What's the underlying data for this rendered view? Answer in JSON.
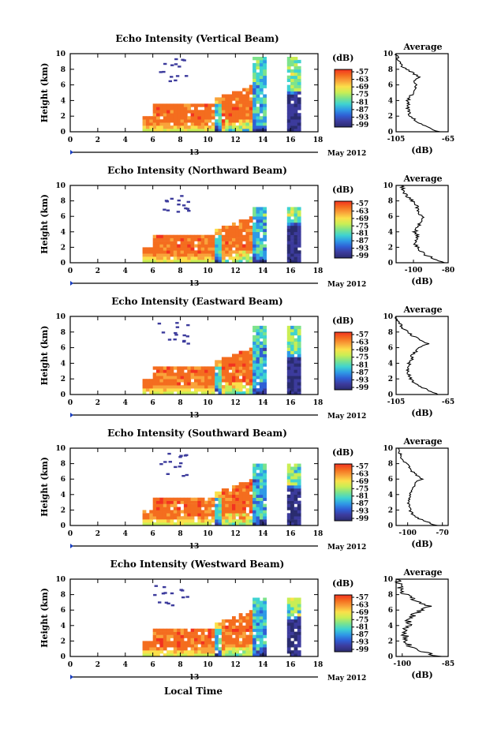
{
  "figure": {
    "xlabel": "Local Time",
    "date_label": "13",
    "month_label": "May 2012",
    "colorbar_unit": "(dB)",
    "colorbar_ticks": [
      "-57",
      "-63",
      "-69",
      "-75",
      "-81",
      "-87",
      "-93",
      "-99"
    ],
    "colormap": [
      "#f23320",
      "#f46d1f",
      "#f9a33a",
      "#fbe04a",
      "#c9ee55",
      "#7de38c",
      "#3fd3d0",
      "#2f9ae6",
      "#2f5fd5",
      "#3c3b9c",
      "#2a2c6f"
    ]
  },
  "chart_data": [
    {
      "type": "heatmap",
      "title": "Echo Intensity (Vertical Beam)",
      "ylabel": "Height (km)",
      "xlim": [
        0,
        18
      ],
      "ylim": [
        0,
        10
      ],
      "xticks": [
        "0",
        "2",
        "4",
        "6",
        "8",
        "10",
        "12",
        "14",
        "16",
        "18"
      ],
      "yticks": [
        "0",
        "2",
        "4",
        "6",
        "8",
        "10"
      ],
      "profile": {
        "title": "Average",
        "xlabel": "(dB)",
        "xlim": [
          -105,
          -65
        ],
        "xticks": [
          "-105",
          "-65"
        ],
        "heights": [
          0,
          0.5,
          1,
          1.5,
          2,
          2.5,
          3,
          3.5,
          4,
          4.5,
          5,
          5.5,
          6,
          6.5,
          7,
          7.5,
          8,
          8.5,
          9,
          9.5,
          10
        ],
        "values": [
          -72,
          -80,
          -86,
          -90,
          -94,
          -95,
          -96,
          -95,
          -96,
          -94,
          -92,
          -90,
          -89,
          -91,
          -87,
          -92,
          -97,
          -101,
          -103,
          -104,
          -105
        ]
      }
    },
    {
      "type": "heatmap",
      "title": "Echo Intensity (Northward Beam)",
      "ylabel": "Height (km)",
      "xlim": [
        0,
        18
      ],
      "ylim": [
        0,
        10
      ],
      "xticks": [
        "0",
        "2",
        "4",
        "6",
        "8",
        "10",
        "12",
        "14",
        "16",
        "18"
      ],
      "yticks": [
        "0",
        "2",
        "4",
        "6",
        "8",
        "10"
      ],
      "profile": {
        "title": "Average",
        "xlabel": "(dB)",
        "xlim": [
          -110,
          -80
        ],
        "xticks": [
          "-100",
          "-80"
        ],
        "heights": [
          0,
          0.5,
          1,
          1.5,
          2,
          2.5,
          3,
          3.5,
          4,
          4.5,
          5,
          5.5,
          6,
          6.5,
          7,
          7.5,
          8,
          8.5,
          9,
          9.5,
          10
        ],
        "values": [
          -83,
          -88,
          -93,
          -96,
          -98,
          -99,
          -99,
          -98,
          -99,
          -98,
          -97,
          -96,
          -95,
          -98,
          -97,
          -99,
          -101,
          -103,
          -105,
          -106,
          -107
        ]
      }
    },
    {
      "type": "heatmap",
      "title": "Echo Intensity (Eastward Beam)",
      "ylabel": "Height (km)",
      "xlim": [
        0,
        18
      ],
      "ylim": [
        0,
        10
      ],
      "xticks": [
        "0",
        "2",
        "4",
        "6",
        "8",
        "10",
        "12",
        "14",
        "16",
        "18"
      ],
      "yticks": [
        "0",
        "2",
        "4",
        "6",
        "8",
        "10"
      ],
      "profile": {
        "title": "Average",
        "xlabel": "(dB)",
        "xlim": [
          -105,
          -65
        ],
        "xticks": [
          "-105",
          "-65"
        ],
        "heights": [
          0,
          0.5,
          1,
          1.5,
          2,
          2.5,
          3,
          3.5,
          4,
          4.5,
          5,
          5.5,
          6,
          6.5,
          7,
          7.5,
          8,
          8.5,
          9,
          9.5,
          10
        ],
        "values": [
          -73,
          -80,
          -86,
          -91,
          -94,
          -95,
          -96,
          -95,
          -95,
          -93,
          -93,
          -90,
          -88,
          -80,
          -87,
          -92,
          -96,
          -100,
          -102,
          -104,
          -105
        ]
      }
    },
    {
      "type": "heatmap",
      "title": "Echo Intensity (Southward Beam)",
      "ylabel": "Height (km)",
      "xlim": [
        0,
        18
      ],
      "ylim": [
        0,
        10
      ],
      "xticks": [
        "0",
        "2",
        "4",
        "6",
        "8",
        "10",
        "12",
        "14",
        "16",
        "18"
      ],
      "yticks": [
        "0",
        "2",
        "4",
        "6",
        "8",
        "10"
      ],
      "profile": {
        "title": "Average",
        "xlabel": "(dB)",
        "xlim": [
          -110,
          -65
        ],
        "xticks": [
          "-100",
          "-70"
        ],
        "heights": [
          0,
          0.5,
          1,
          1.5,
          2,
          2.5,
          3,
          3.5,
          4,
          4.5,
          5,
          5.5,
          6,
          6.5,
          7,
          7.5,
          8,
          8.5,
          9,
          9.5,
          10
        ],
        "values": [
          -75,
          -84,
          -92,
          -96,
          -98,
          -99,
          -99,
          -98,
          -98,
          -96,
          -95,
          -94,
          -88,
          -92,
          -96,
          -98,
          -101,
          -104,
          -106,
          -107,
          -108
        ]
      }
    },
    {
      "type": "heatmap",
      "title": "Echo Intensity (Westward Beam)",
      "ylabel": "Height (km)",
      "xlim": [
        0,
        18
      ],
      "ylim": [
        0,
        10
      ],
      "xticks": [
        "0",
        "2",
        "4",
        "6",
        "8",
        "10",
        "12",
        "14",
        "16",
        "18"
      ],
      "yticks": [
        "0",
        "2",
        "4",
        "6",
        "8",
        "10"
      ],
      "profile": {
        "title": "Average",
        "xlabel": "(dB)",
        "xlim": [
          -102,
          -85
        ],
        "xticks": [
          "-100",
          "-85"
        ],
        "heights": [
          0,
          0.5,
          1,
          1.5,
          2,
          2.5,
          3,
          3.5,
          4,
          4.5,
          5,
          5.5,
          6,
          6.5,
          7,
          7.5,
          8,
          8.5,
          9,
          9.5,
          10
        ],
        "values": [
          -88,
          -92,
          -96,
          -98,
          -99,
          -99,
          -99,
          -99,
          -98,
          -98,
          -97,
          -96,
          -94,
          -91,
          -95,
          -97,
          -99,
          -100,
          -101,
          -101,
          -102
        ]
      }
    }
  ]
}
